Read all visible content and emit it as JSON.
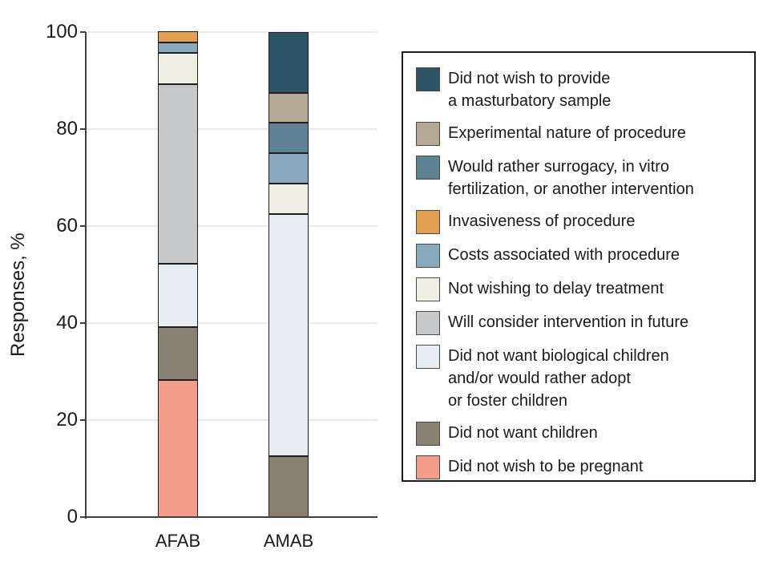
{
  "figure": {
    "background": "#ffffff",
    "axis_color": "#3f3f3f",
    "grid_color": "#e8e8e8",
    "text_color": "#1a1a1a",
    "bar_outline_color": "#1f1f1f",
    "legend_border_color": "#1a1a1a"
  },
  "chart_data": {
    "type": "bar",
    "stacked": true,
    "title": "",
    "xlabel": "",
    "ylabel": "Responses, %",
    "ylim": [
      0,
      100
    ],
    "yticks": [
      0,
      20,
      40,
      60,
      80,
      100
    ],
    "grid": "horizontal",
    "legend_position": "right",
    "categories": [
      "AFAB",
      "AMAB"
    ],
    "series": [
      {
        "name": "Did not wish to provide a masturbatory sample",
        "label_lines": [
          "Did not wish to provide",
          "a masturbatory sample"
        ],
        "color": "#2E5565",
        "values": [
          0,
          12.5
        ]
      },
      {
        "name": "Experimental nature of procedure",
        "label_lines": [
          "Experimental nature of procedure"
        ],
        "color": "#B3A995",
        "values": [
          0,
          6.25
        ]
      },
      {
        "name": "Would rather surrogacy, in vitro fertilization, or another intervention",
        "label_lines": [
          "Would rather surrogacy, in vitro",
          "fertilization, or another intervention"
        ],
        "color": "#5E8294",
        "values": [
          0,
          6.25
        ]
      },
      {
        "name": "Invasiveness of procedure",
        "label_lines": [
          "Invasiveness of procedure"
        ],
        "color": "#E3A055",
        "values": [
          2.2,
          0
        ]
      },
      {
        "name": "Costs associated with procedure",
        "label_lines": [
          "Costs associated with procedure"
        ],
        "color": "#87A9BB",
        "values": [
          2.2,
          6.25
        ]
      },
      {
        "name": "Not wishing to delay treatment",
        "label_lines": [
          "Not wishing to delay treatment"
        ],
        "color": "#F0EFE3",
        "values": [
          6.5,
          6.25
        ]
      },
      {
        "name": "Will consider intervention in future",
        "label_lines": [
          "Will consider intervention in future"
        ],
        "color": "#C6C8CA",
        "values": [
          37,
          0
        ]
      },
      {
        "name": "Did not want biological children and/or would rather adopt or foster children",
        "label_lines": [
          "Did not want biological children",
          "and/or would rather adopt",
          "or foster children"
        ],
        "color": "#E6EEF3",
        "values": [
          13,
          50
        ]
      },
      {
        "name": "Did not want children",
        "label_lines": [
          "Did not want children"
        ],
        "color": "#8A8173",
        "values": [
          10.9,
          12.5
        ]
      },
      {
        "name": "Did not wish to be pregnant",
        "label_lines": [
          "Did not wish to be pregnant"
        ],
        "color": "#F29C89",
        "values": [
          28.3,
          0
        ]
      }
    ]
  }
}
